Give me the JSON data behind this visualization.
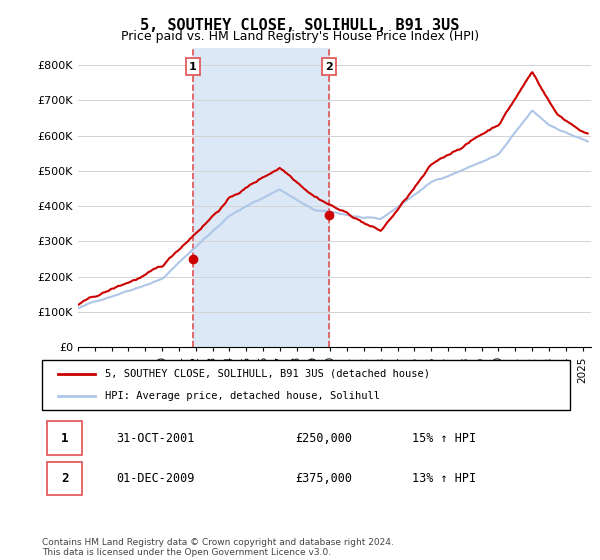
{
  "title": "5, SOUTHEY CLOSE, SOLIHULL, B91 3US",
  "subtitle": "Price paid vs. HM Land Registry's House Price Index (HPI)",
  "xlim_start": 1995.0,
  "xlim_end": 2025.5,
  "ylim": [
    0,
    850000
  ],
  "yticks": [
    0,
    100000,
    200000,
    300000,
    400000,
    500000,
    600000,
    700000,
    800000
  ],
  "ytick_labels": [
    "£0",
    "£100K",
    "£200K",
    "£300K",
    "£400K",
    "£500K",
    "£600K",
    "£700K",
    "£800K"
  ],
  "purchase1_x": 2001.83,
  "purchase1_y": 250000,
  "purchase2_x": 2009.92,
  "purchase2_y": 375000,
  "hpi_color": "#aec6e8",
  "price_color": "#cc0000",
  "vline_color": "#e05050",
  "bg_color": "#dce8f5",
  "legend_price_label": "5, SOUTHEY CLOSE, SOLIHULL, B91 3US (detached house)",
  "legend_hpi_label": "HPI: Average price, detached house, Solihull",
  "table_row1": [
    "1",
    "31-OCT-2001",
    "£250,000",
    "15% ↑ HPI"
  ],
  "table_row2": [
    "2",
    "01-DEC-2009",
    "£375,000",
    "13% ↑ HPI"
  ],
  "footnote": "Contains HM Land Registry data © Crown copyright and database right 2024.\nThis data is licensed under the Open Government Licence v3.0.",
  "xtick_years": [
    1995,
    1996,
    1997,
    1998,
    1999,
    2000,
    2001,
    2002,
    2003,
    2004,
    2005,
    2006,
    2007,
    2008,
    2009,
    2010,
    2011,
    2012,
    2013,
    2014,
    2015,
    2016,
    2017,
    2018,
    2019,
    2020,
    2021,
    2022,
    2023,
    2024,
    2025
  ]
}
